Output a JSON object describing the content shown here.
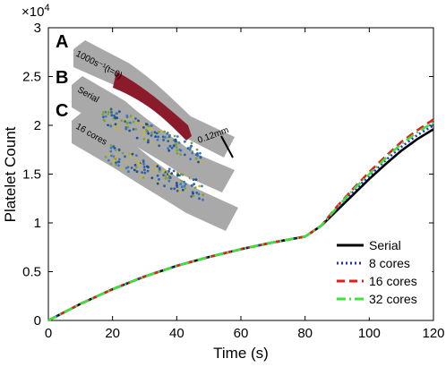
{
  "chart_data": {
    "type": "line",
    "xlabel": "Time (s)",
    "ylabel": "Platelet Count",
    "y_exponent_label": "×10",
    "y_exponent_power": "4",
    "xlim": [
      0,
      120
    ],
    "ylim": [
      0,
      30000
    ],
    "x_ticks": [
      0,
      20,
      40,
      60,
      80,
      100,
      120
    ],
    "y_ticks": [
      0,
      5000,
      10000,
      15000,
      20000,
      25000,
      30000
    ],
    "y_tick_labels": [
      "0",
      "0.5",
      "1",
      "1.5",
      "2",
      "2.5",
      "3"
    ],
    "legend_position": "bottom-right",
    "grid": false,
    "series": [
      {
        "name": "Serial",
        "color": "#000000",
        "style": "solid",
        "x": [
          0,
          10,
          20,
          30,
          40,
          50,
          60,
          70,
          80,
          85,
          90,
          95,
          100,
          105,
          110,
          115,
          120
        ],
        "y": [
          0,
          1700,
          3200,
          4500,
          5600,
          6500,
          7300,
          8000,
          8600,
          9700,
          11300,
          12900,
          14500,
          16000,
          17400,
          18600,
          19600
        ]
      },
      {
        "name": "8 cores",
        "color": "#1f2fd0",
        "style": "dotted",
        "x": [
          0,
          10,
          20,
          30,
          40,
          50,
          60,
          70,
          80,
          85,
          90,
          95,
          100,
          105,
          110,
          115,
          120
        ],
        "y": [
          0,
          1700,
          3200,
          4500,
          5600,
          6500,
          7300,
          8000,
          8600,
          9700,
          11500,
          13200,
          14800,
          16400,
          17800,
          19000,
          20000
        ]
      },
      {
        "name": "16 cores",
        "color": "#e01e1e",
        "style": "dashed",
        "x": [
          0,
          10,
          20,
          30,
          40,
          50,
          60,
          70,
          80,
          85,
          90,
          95,
          100,
          105,
          110,
          115,
          120
        ],
        "y": [
          0,
          1700,
          3200,
          4500,
          5600,
          6500,
          7300,
          8000,
          8600,
          9700,
          11700,
          13500,
          15200,
          16800,
          18300,
          19500,
          20600
        ]
      },
      {
        "name": "32 cores",
        "color": "#3de23d",
        "style": "dashdot",
        "x": [
          0,
          10,
          20,
          30,
          40,
          50,
          60,
          70,
          80,
          85,
          90,
          95,
          100,
          105,
          110,
          115,
          120
        ],
        "y": [
          0,
          1700,
          3200,
          4500,
          5600,
          6500,
          7300,
          8000,
          8600,
          9700,
          11600,
          13400,
          15000,
          16600,
          18100,
          19300,
          20300
        ]
      }
    ]
  },
  "inset": {
    "panel_labels": [
      "A",
      "B",
      "C"
    ],
    "shear_label": "1000s⁻¹(t=0)",
    "serial_label": "Serial",
    "cores_label": "16 cores",
    "scale_label": "0.12mm"
  }
}
